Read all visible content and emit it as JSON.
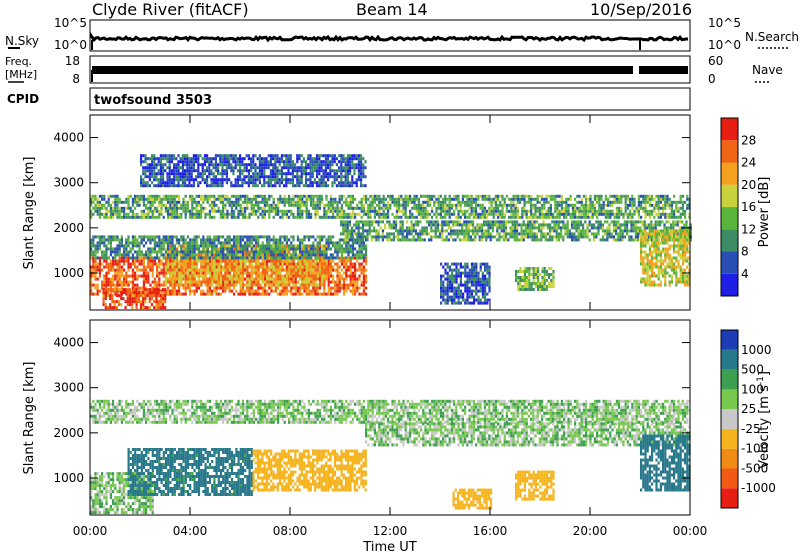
{
  "header": {
    "title": "Clyde River (fitACF)",
    "beam": "Beam 14",
    "date": "10/Sep/2016"
  },
  "strips": {
    "nsky": {
      "label": "N.Sky",
      "ticks_left": [
        "10^5",
        "10^0"
      ],
      "ticks_right": [
        "10^5",
        "10^0"
      ],
      "right_label": "N.Search"
    },
    "freq": {
      "label_line1": "Freq.",
      "label_line2": "[MHz]",
      "ticks_left": [
        "18",
        "8"
      ],
      "ticks_right": [
        "60",
        "0"
      ],
      "right_label": "Nave"
    },
    "cpid": {
      "label": "CPID",
      "value": "twofsound 3503"
    }
  },
  "xaxis": {
    "label": "Time UT",
    "ticks": [
      "00:00",
      "04:00",
      "08:00",
      "12:00",
      "16:00",
      "20:00",
      "00:00"
    ]
  },
  "panels": {
    "power": {
      "ylabel": "Slant Range [km]",
      "yticks": [
        "1000",
        "2000",
        "3000",
        "4000"
      ],
      "colorbar_title": "Power [dB]",
      "colorbar_ticks": [
        "4",
        "8",
        "12",
        "16",
        "20",
        "24",
        "28"
      ],
      "colors": [
        "#1e1ee6",
        "#2850b4",
        "#3c8c64",
        "#5ab43c",
        "#c8d23c",
        "#f5a01e",
        "#f06414",
        "#e61e14"
      ]
    },
    "velocity": {
      "ylabel": "Slant Range [km]",
      "yticks": [
        "1000",
        "2000",
        "3000",
        "4000"
      ],
      "colorbar_title": "Velocity [m s",
      "colorbar_sup": "-1",
      "colorbar_close": "]",
      "colorbar_ticks": [
        "1000",
        "500",
        "100",
        "25",
        "-25",
        "-100",
        "-500",
        "-1000"
      ],
      "colors": [
        "#1e3cb4",
        "#28788c",
        "#3ca050",
        "#78c850",
        "#c8c8c8",
        "#f5b41e",
        "#f08c14",
        "#f05a14",
        "#e61e14"
      ]
    }
  },
  "chart_data": {
    "type": "heatmap",
    "x_range_hours_ut": [
      0,
      24
    ],
    "y_range_km": [
      180,
      4500
    ],
    "power_scale_db": [
      0,
      30
    ],
    "velocity_scale_ms": [
      -1000,
      1000
    ],
    "power_bands": [
      {
        "t0": 0.0,
        "t1": 11.0,
        "r0": 500,
        "r1": 1300,
        "value": 26
      },
      {
        "t0": 0.5,
        "t1": 3.0,
        "r0": 200,
        "r1": 600,
        "value": 28
      },
      {
        "t0": 3.0,
        "t1": 9.5,
        "r0": 700,
        "r1": 1600,
        "value": 22
      },
      {
        "t0": 0.0,
        "t1": 11.0,
        "r0": 1300,
        "r1": 1800,
        "value": 10
      },
      {
        "t0": 0.0,
        "t1": 24.0,
        "r0": 2200,
        "r1": 2700,
        "value": 12
      },
      {
        "t0": 10.0,
        "t1": 24.0,
        "r0": 1700,
        "r1": 2100,
        "value": 12
      },
      {
        "t0": 2.0,
        "t1": 11.0,
        "r0": 2900,
        "r1": 3600,
        "value": 6
      },
      {
        "t0": 14.0,
        "t1": 16.0,
        "r0": 300,
        "r1": 1200,
        "value": 6
      },
      {
        "t0": 17.0,
        "t1": 18.5,
        "r0": 600,
        "r1": 1100,
        "value": 14
      },
      {
        "t0": 22.0,
        "t1": 24.0,
        "r0": 700,
        "r1": 1900,
        "value": 18
      }
    ],
    "velocity_bands": [
      {
        "t0": 0.0,
        "t1": 2.5,
        "r0": 200,
        "r1": 1100,
        "value": 10
      },
      {
        "t0": 1.5,
        "t1": 6.5,
        "r0": 600,
        "r1": 1600,
        "value": 150
      },
      {
        "t0": 6.5,
        "t1": 11.0,
        "r0": 700,
        "r1": 1600,
        "value": -250
      },
      {
        "t0": 0.0,
        "t1": 24.0,
        "r0": 2200,
        "r1": 2700,
        "value": 0
      },
      {
        "t0": 11.0,
        "t1": 24.0,
        "r0": 1700,
        "r1": 2200,
        "value": 0
      },
      {
        "t0": 14.5,
        "t1": 16.0,
        "r0": 300,
        "r1": 700,
        "value": -250
      },
      {
        "t0": 17.0,
        "t1": 18.5,
        "r0": 500,
        "r1": 1100,
        "value": -300
      },
      {
        "t0": 22.0,
        "t1": 24.0,
        "r0": 700,
        "r1": 1900,
        "value": 200
      }
    ]
  }
}
